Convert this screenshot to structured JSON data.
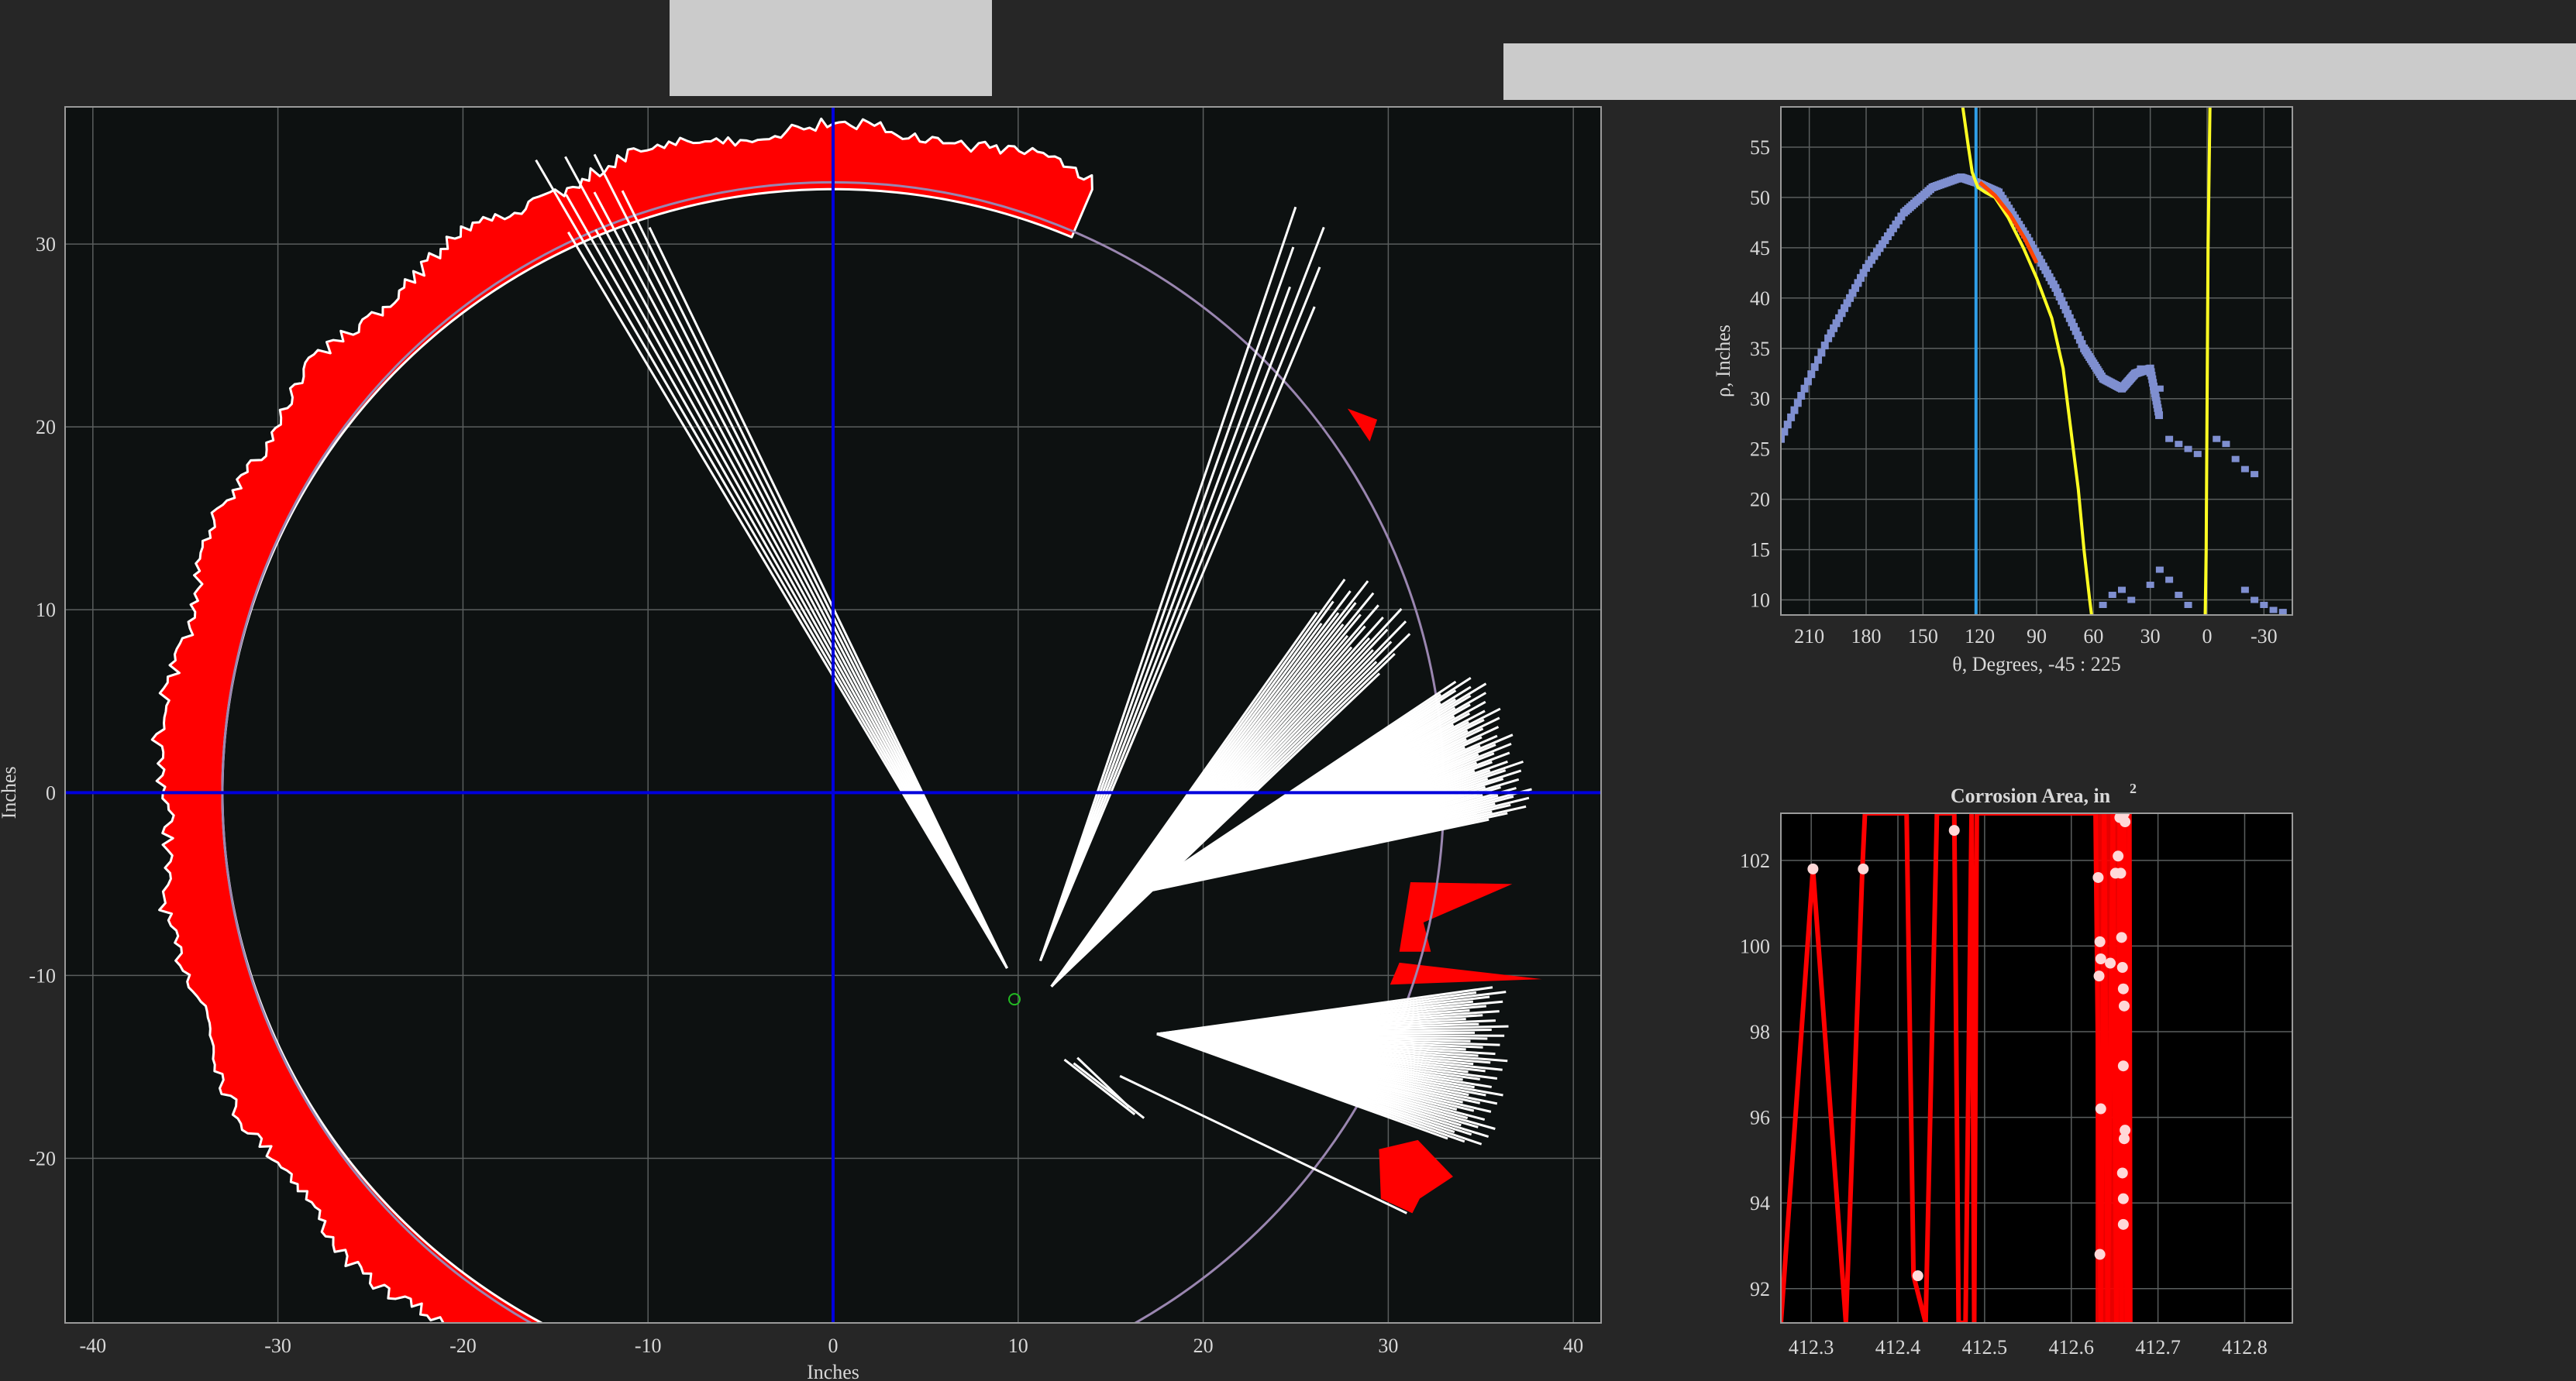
{
  "colors": {
    "background": "#262626",
    "axes_bg": "#0d1111",
    "grid": "#5a5e5e",
    "corrosion_red": "#ff0000",
    "white": "#ffffff",
    "blue_axis": "#0000dd",
    "pipe_circle": "#9a86b0",
    "hough_points": "#7f8fd0",
    "yellow": "#ffff22",
    "cyan_line": "#2f9fe8",
    "center_marker": "#22bb22",
    "text": "#d8d8d8"
  },
  "main_chart": {
    "chart_data": {
      "type": "scatter",
      "title": "",
      "xlabel": "Inches",
      "ylabel": "Inches",
      "xlim": [
        -41.5,
        41.5
      ],
      "ylim": [
        -29,
        37.5
      ],
      "xticks": [
        -40,
        -30,
        -20,
        -10,
        0,
        10,
        20,
        30,
        40
      ],
      "yticks": [
        -20,
        -10,
        0,
        10,
        20,
        30
      ],
      "pipe_circle": {
        "cx": 0,
        "cy": 0,
        "r": 33
      },
      "crosshair": {
        "x": 0,
        "y": 0
      },
      "center_marker": {
        "x": 9.8,
        "y": -11.3
      },
      "corrosion_band": {
        "from_deg": 67,
        "to_deg": 243,
        "inner_r": 33,
        "outer_r": 36.3
      },
      "ray_sweeps": [
        {
          "origin": [
            9.4,
            -9.6
          ],
          "from_deg": 115.5,
          "to_deg": 120.5,
          "length": 51,
          "count": 10
        },
        {
          "origin": [
            11.2,
            -9.2
          ],
          "from_deg": 67.5,
          "to_deg": 71.5,
          "length": 44,
          "count": 6
        },
        {
          "origin": [
            11.8,
            -10.6
          ],
          "from_deg": 44,
          "to_deg": 55,
          "length": 28,
          "count": 26
        },
        {
          "origin": [
            16.5,
            -5.5
          ],
          "from_deg": 12,
          "to_deg": 34,
          "length": 22,
          "count": 60
        },
        {
          "origin": [
            17.5,
            -13.2
          ],
          "from_deg": -20,
          "to_deg": 8,
          "length": 19,
          "count": 55
        }
      ]
    }
  },
  "polar_chart": {
    "chart_data": {
      "type": "scatter",
      "xlabel": "θ, Degrees, -45 : 225",
      "ylabel": "ρ, Inches",
      "xlim": [
        225,
        -45
      ],
      "ylim": [
        8.5,
        59
      ],
      "xticks": [
        210,
        180,
        150,
        120,
        90,
        60,
        30,
        0,
        -30
      ],
      "yticks": [
        10,
        15,
        20,
        25,
        30,
        35,
        40,
        45,
        50,
        55
      ],
      "vertical_line_theta": 122,
      "series": [
        {
          "name": "hough-curve",
          "theta": [
            225,
            200,
            180,
            160,
            145,
            130,
            122,
            110,
            95,
            80,
            65,
            55,
            45,
            38,
            30,
            25
          ],
          "rho": [
            26,
            36,
            43,
            48.5,
            51,
            52,
            51.5,
            50.5,
            46,
            41,
            35,
            32,
            31,
            32.5,
            33,
            28
          ]
        },
        {
          "name": "yellow-curve-1",
          "theta": [
            129,
            126,
            124,
            121,
            117,
            112,
            105,
            97,
            90,
            82,
            76,
            72,
            68,
            65,
            62,
            61
          ],
          "rho": [
            59,
            55,
            52.5,
            51,
            50.5,
            50,
            48,
            45,
            42,
            38,
            33,
            27,
            21,
            15,
            10,
            8.5
          ]
        },
        {
          "name": "yellow-curve-2",
          "theta": [
            -1.5,
            -0.5,
            0,
            0.5,
            1
          ],
          "rho": [
            59,
            45,
            30,
            15,
            8.5
          ]
        },
        {
          "name": "red-highlight",
          "theta": [
            120,
            112,
            104,
            96,
            90
          ],
          "rho": [
            51.5,
            50.2,
            48.3,
            45.8,
            43.5
          ]
        }
      ]
    }
  },
  "corrosion_chart": {
    "chart_data": {
      "type": "line",
      "title": "Corrosion Area, in",
      "title_superscript": "2",
      "xlim": [
        412.265,
        412.855
      ],
      "ylim": [
        91.2,
        103.1
      ],
      "xticks": [
        412.3,
        412.4,
        412.5,
        412.6,
        412.7,
        412.8
      ],
      "xtick_labels": [
        "412.3",
        "412.4",
        "412.5",
        "412.6",
        "412.7",
        "412.8"
      ],
      "yticks": [
        92,
        94,
        96,
        98,
        100,
        102
      ],
      "series": [
        {
          "name": "area-trace",
          "x": [
            412.265,
            412.302,
            412.34,
            412.359,
            412.362,
            412.41,
            412.418,
            412.432,
            412.445,
            412.452,
            412.465,
            412.47,
            412.478,
            412.485,
            412.488,
            412.491,
            412.628,
            412.634,
            412.638,
            412.642,
            412.648,
            412.652,
            412.656,
            412.658,
            412.661,
            412.664,
            412.667,
            412.668
          ],
          "y": [
            91.2,
            101.8,
            91.2,
            101.8,
            103.1,
            103.1,
            92.3,
            91.2,
            103.1,
            103.1,
            103.1,
            91.2,
            91.2,
            103.1,
            91.2,
            103.1,
            103.1,
            91.2,
            103.1,
            91.2,
            103.1,
            91.2,
            103.1,
            91.2,
            103.1,
            91.2,
            103.1,
            91.2
          ]
        }
      ],
      "points": {
        "x": [
          412.302,
          412.36,
          412.423,
          412.465,
          412.631,
          412.633,
          412.632,
          412.634,
          412.633,
          412.634,
          412.645,
          412.651,
          412.654,
          412.657,
          412.658,
          412.659,
          412.66,
          412.661,
          412.66,
          412.662,
          412.661,
          412.659,
          412.66,
          412.66,
          412.661,
          412.662,
          412.657,
          412.656
        ],
        "y": [
          101.8,
          101.8,
          92.3,
          102.7,
          101.6,
          100.1,
          99.3,
          96.2,
          92.8,
          99.7,
          99.6,
          101.7,
          102.1,
          101.7,
          100.2,
          99.5,
          99.0,
          98.6,
          97.2,
          95.7,
          95.5,
          94.7,
          94.1,
          93.5,
          103.1,
          102.9,
          103.1,
          103.0
        ]
      }
    }
  }
}
